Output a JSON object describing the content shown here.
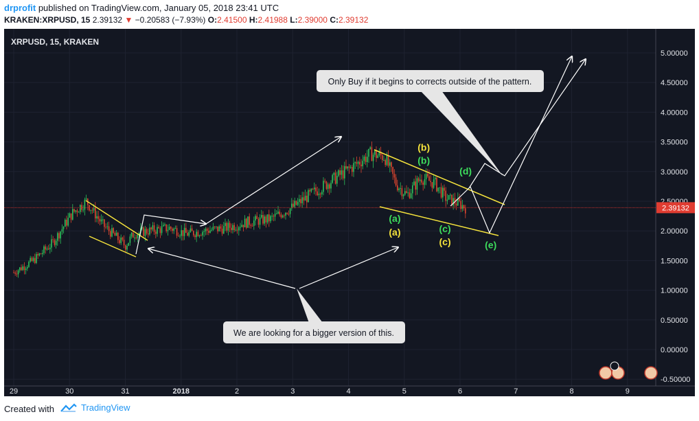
{
  "header": {
    "author": "drprofit",
    "published_text": " published on TradingView.com, January 05, 2018 23:41 UTC",
    "symbol": "KRAKEN:XRPUSD, 15",
    "last": "2.39132",
    "change_arrow": "▼",
    "change": "−0.20583 (−7.93%)",
    "o_label": "O:",
    "o_val": "2.41500",
    "h_label": "H:",
    "h_val": "2.41988",
    "l_label": "L:",
    "l_val": "2.39000",
    "c_label": "C:",
    "c_val": "2.39132"
  },
  "chart_data": {
    "type": "line",
    "title": "XRPUSD, 15, KRAKEN",
    "x_tick_labels": [
      "29",
      "30",
      "31",
      "2018",
      "2",
      "3",
      "4",
      "5",
      "6",
      "7",
      "8",
      "9"
    ],
    "y_tick_labels": [
      "5.00000",
      "4.50000",
      "4.00000",
      "3.50000",
      "3.00000",
      "2.50000",
      "2.00000",
      "1.50000",
      "1.00000",
      "0.50000",
      "0.00000",
      "-0.50000"
    ],
    "ylim": [
      -0.55,
      5.3
    ],
    "last_price": 2.39132,
    "last_price_label": "2.39132",
    "price_series": [
      {
        "x": 0.0,
        "y": 1.3
      },
      {
        "x": 0.35,
        "y": 1.5
      },
      {
        "x": 0.7,
        "y": 1.8
      },
      {
        "x": 1.05,
        "y": 2.3
      },
      {
        "x": 1.3,
        "y": 2.5
      },
      {
        "x": 1.6,
        "y": 2.1
      },
      {
        "x": 2.0,
        "y": 1.75
      },
      {
        "x": 2.15,
        "y": 1.95
      },
      {
        "x": 2.4,
        "y": 2.0
      },
      {
        "x": 2.8,
        "y": 2.05
      },
      {
        "x": 3.1,
        "y": 1.95
      },
      {
        "x": 3.4,
        "y": 2.0
      },
      {
        "x": 3.8,
        "y": 2.05
      },
      {
        "x": 4.2,
        "y": 2.15
      },
      {
        "x": 4.6,
        "y": 2.2
      },
      {
        "x": 5.0,
        "y": 2.4
      },
      {
        "x": 5.3,
        "y": 2.6
      },
      {
        "x": 5.7,
        "y": 2.85
      },
      {
        "x": 6.1,
        "y": 3.1
      },
      {
        "x": 6.4,
        "y": 3.3
      },
      {
        "x": 6.65,
        "y": 3.25
      },
      {
        "x": 6.85,
        "y": 2.8
      },
      {
        "x": 7.05,
        "y": 2.6
      },
      {
        "x": 7.3,
        "y": 2.9
      },
      {
        "x": 7.55,
        "y": 2.8
      },
      {
        "x": 7.75,
        "y": 2.55
      },
      {
        "x": 8.0,
        "y": 2.45
      },
      {
        "x": 8.1,
        "y": 2.39
      }
    ],
    "wave_labels": [
      {
        "text": "(a)",
        "x": 6.83,
        "y": 2.15,
        "color": "#3ddc5c"
      },
      {
        "text": "(a)",
        "x": 6.83,
        "y": 1.92,
        "color": "#f5e33c"
      },
      {
        "text": "(b)",
        "x": 7.35,
        "y": 3.35,
        "color": "#f5e33c"
      },
      {
        "text": "(b)",
        "x": 7.35,
        "y": 3.13,
        "color": "#3ddc5c"
      },
      {
        "text": "(c)",
        "x": 7.73,
        "y": 1.98,
        "color": "#3ddc5c"
      },
      {
        "text": "(c)",
        "x": 7.73,
        "y": 1.76,
        "color": "#f5e33c"
      },
      {
        "text": "(d)",
        "x": 8.1,
        "y": 2.95,
        "color": "#3ddc5c"
      },
      {
        "text": "(e)",
        "x": 8.55,
        "y": 1.71,
        "color": "#3ddc5c"
      }
    ],
    "annotations": [
      {
        "text": "Only Buy if it begins to corrects outside of the pattern."
      },
      {
        "text": "We are looking for a bigger version of this."
      }
    ]
  },
  "footer": {
    "created_with": "Created with",
    "brand": "TradingView"
  },
  "colors": {
    "background": "#131722",
    "grid": "#1e2230",
    "channel": "#f5e33c",
    "label_green": "#3ddc5c",
    "label_yellow": "#f5e33c",
    "price_marker": "#e03c31",
    "callout_bg": "#e6e6e6",
    "arrow": "#ffffff",
    "axis_text": "#e1e3e8",
    "brand": "#2196f3"
  }
}
